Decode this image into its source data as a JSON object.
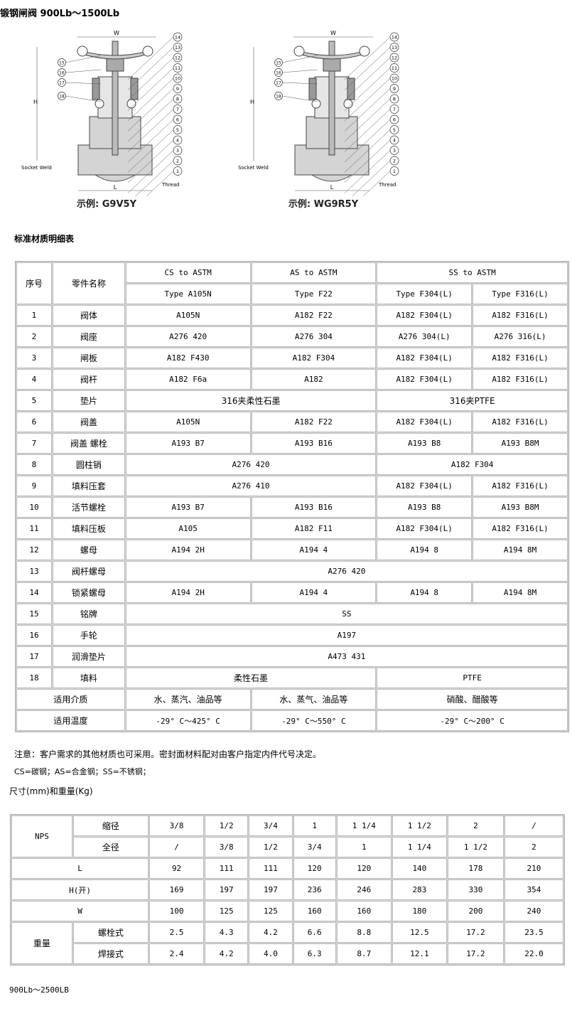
{
  "title": "锻钢闸阀 900Lb～1500Lb",
  "figures": [
    {
      "caption": "示例: G9V5Y",
      "labels": {
        "w": "W",
        "h": "H",
        "l": "L",
        "socket": "Socket Weld",
        "thread": "Thread"
      },
      "callouts": [
        "14",
        "13",
        "12",
        "11",
        "10",
        "9",
        "8",
        "7",
        "6",
        "5",
        "4",
        "3",
        "2",
        "1"
      ],
      "left_callouts": [
        "15",
        "16",
        "17",
        "18"
      ]
    },
    {
      "caption": "示例: WG9R5Y",
      "labels": {
        "w": "W",
        "h": "H",
        "l": "L",
        "socket": "Socket Weld",
        "thread": "Thread"
      },
      "callouts": [
        "14",
        "13",
        "12",
        "11",
        "10",
        "9",
        "8",
        "7",
        "6",
        "5",
        "4",
        "3",
        "2",
        "1"
      ],
      "left_callouts": [
        "15",
        "16",
        "17",
        "18"
      ]
    }
  ],
  "materials_title": "标准材质明细表",
  "materials_table": {
    "rows": [
      [
        {
          "t": "序号",
          "rs": 2,
          "cn": 1
        },
        {
          "t": "零件名称",
          "rs": 2,
          "cn": 1
        },
        {
          "t": "CS to ASTM"
        },
        {
          "t": "AS to ASTM"
        },
        {
          "t": "SS to ASTM",
          "cs": 2
        }
      ],
      [
        {
          "t": "Type A105N"
        },
        {
          "t": "Type F22"
        },
        {
          "t": "Type F304(L)"
        },
        {
          "t": "Type F316(L)"
        }
      ],
      [
        {
          "t": "1"
        },
        {
          "t": "阀体",
          "cn": 1
        },
        {
          "t": "A105N"
        },
        {
          "t": "A182 F22"
        },
        {
          "t": "A182 F304(L)"
        },
        {
          "t": "A182 F316(L)"
        }
      ],
      [
        {
          "t": "2"
        },
        {
          "t": "阀座",
          "cn": 1
        },
        {
          "t": "A276 420"
        },
        {
          "t": "A276 304"
        },
        {
          "t": "A276 304(L)"
        },
        {
          "t": "A276 316(L)"
        }
      ],
      [
        {
          "t": "3"
        },
        {
          "t": "闸板",
          "cn": 1
        },
        {
          "t": "A182 F430"
        },
        {
          "t": "A182 F304"
        },
        {
          "t": "A182 F304(L)"
        },
        {
          "t": "A182 F316(L)"
        }
      ],
      [
        {
          "t": "4"
        },
        {
          "t": "阀杆",
          "cn": 1
        },
        {
          "t": "A182 F6a"
        },
        {
          "t": "A182"
        },
        {
          "t": "A182 F304(L)"
        },
        {
          "t": "A182 F316(L)"
        }
      ],
      [
        {
          "t": "5"
        },
        {
          "t": "垫片",
          "cn": 1
        },
        {
          "t": "316夹柔性石墨",
          "cs": 2,
          "cn": 1
        },
        {
          "t": "316夹PTFE",
          "cs": 2,
          "cn": 1
        }
      ],
      [
        {
          "t": "6"
        },
        {
          "t": "阀盖",
          "cn": 1
        },
        {
          "t": "A105N"
        },
        {
          "t": "A182 F22"
        },
        {
          "t": "A182 F304(L)"
        },
        {
          "t": "A182 F316(L)"
        }
      ],
      [
        {
          "t": "7"
        },
        {
          "t": "阀盖 螺栓",
          "cn": 1
        },
        {
          "t": "A193 B7"
        },
        {
          "t": "A193 B16"
        },
        {
          "t": "A193 B8"
        },
        {
          "t": "A193 B8M"
        }
      ],
      [
        {
          "t": "8"
        },
        {
          "t": "圆柱销",
          "cn": 1
        },
        {
          "t": "A276 420",
          "cs": 2
        },
        {
          "t": "A182 F304",
          "cs": 2
        }
      ],
      [
        {
          "t": "9"
        },
        {
          "t": "填料压套",
          "cn": 1
        },
        {
          "t": "A276 410",
          "cs": 2
        },
        {
          "t": "A182 F304(L)"
        },
        {
          "t": "A182 F316(L)"
        }
      ],
      [
        {
          "t": "10"
        },
        {
          "t": "活节螺栓",
          "cn": 1
        },
        {
          "t": "A193 B7"
        },
        {
          "t": "A193 B16"
        },
        {
          "t": "A193 B8"
        },
        {
          "t": "A193 B8M"
        }
      ],
      [
        {
          "t": "11"
        },
        {
          "t": "填料压板",
          "cn": 1
        },
        {
          "t": "A105"
        },
        {
          "t": "A182 F11"
        },
        {
          "t": "A182 F304(L)"
        },
        {
          "t": "A182 F316(L)"
        }
      ],
      [
        {
          "t": "12"
        },
        {
          "t": "螺母",
          "cn": 1
        },
        {
          "t": "A194 2H"
        },
        {
          "t": "A194 4"
        },
        {
          "t": "A194 8"
        },
        {
          "t": "A194 8M"
        }
      ],
      [
        {
          "t": "13"
        },
        {
          "t": "阀杆螺母",
          "cn": 1
        },
        {
          "t": "A276 420",
          "cs": 4
        }
      ],
      [
        {
          "t": "14"
        },
        {
          "t": "锁紧螺母",
          "cn": 1
        },
        {
          "t": "A194 2H"
        },
        {
          "t": "A194 4"
        },
        {
          "t": "A194 8"
        },
        {
          "t": "A194 8M"
        }
      ],
      [
        {
          "t": "15"
        },
        {
          "t": "铭牌",
          "cn": 1
        },
        {
          "t": "SS",
          "cs": 4
        }
      ],
      [
        {
          "t": "16"
        },
        {
          "t": "手轮",
          "cn": 1
        },
        {
          "t": "A197",
          "cs": 4
        }
      ],
      [
        {
          "t": "17"
        },
        {
          "t": "润滑垫片",
          "cn": 1
        },
        {
          "t": "A473 431",
          "cs": 4
        }
      ],
      [
        {
          "t": "18"
        },
        {
          "t": "填料",
          "cn": 1
        },
        {
          "t": "柔性石墨",
          "cs": 2,
          "cn": 1
        },
        {
          "t": "PTFE",
          "cs": 2
        }
      ],
      [
        {
          "t": "适用介质",
          "cs": 2,
          "cn": 1
        },
        {
          "t": "水、蒸汽、油品等",
          "cn": 1
        },
        {
          "t": "水、蒸气、油品等",
          "cn": 1
        },
        {
          "t": "硝酸、醋酸等",
          "cs": 2,
          "cn": 1
        }
      ],
      [
        {
          "t": "适用温度",
          "cs": 2,
          "cn": 1
        },
        {
          "t": "-29° C～425° C"
        },
        {
          "t": "-29° C～550° C"
        },
        {
          "t": "-29° C～200° C",
          "cs": 2
        }
      ]
    ]
  },
  "notes": [
    "注意：客户需求的其他材质也可采用。密封面材料配对由客户指定内件代号决定。",
    "CS=碳钢；AS=合金钢；SS=不锈钢；"
  ],
  "dims_title": "尺寸(mm)和重量(Kg)",
  "dims_table": {
    "rows": [
      [
        {
          "t": "NPS",
          "rs": 2
        },
        {
          "t": "缩径",
          "cn": 1
        },
        {
          "t": "3/8",
          "f": 1
        },
        {
          "t": "1/2",
          "f": 1
        },
        {
          "t": "3/4",
          "f": 1
        },
        {
          "t": "1"
        },
        {
          "t": "1 1/4",
          "f": 1
        },
        {
          "t": "1 1/2",
          "f": 1
        },
        {
          "t": "2"
        },
        {
          "t": "/"
        }
      ],
      [
        {
          "t": "全径",
          "cn": 1
        },
        {
          "t": "/"
        },
        {
          "t": "3/8",
          "f": 1
        },
        {
          "t": "1/2",
          "f": 1
        },
        {
          "t": "3/4",
          "f": 1
        },
        {
          "t": "1"
        },
        {
          "t": "1 1/4",
          "f": 1
        },
        {
          "t": "1 1/2",
          "f": 1
        },
        {
          "t": "2"
        }
      ],
      [
        {
          "t": "L",
          "cs": 2
        },
        {
          "t": "92"
        },
        {
          "t": "111"
        },
        {
          "t": "111"
        },
        {
          "t": "120"
        },
        {
          "t": "120"
        },
        {
          "t": "140"
        },
        {
          "t": "178"
        },
        {
          "t": "210"
        }
      ],
      [
        {
          "t": "H(开)",
          "cs": 2
        },
        {
          "t": "169"
        },
        {
          "t": "197"
        },
        {
          "t": "197"
        },
        {
          "t": "236"
        },
        {
          "t": "246"
        },
        {
          "t": "283"
        },
        {
          "t": "330"
        },
        {
          "t": "354"
        }
      ],
      [
        {
          "t": "W",
          "cs": 2
        },
        {
          "t": "100"
        },
        {
          "t": "125"
        },
        {
          "t": "125"
        },
        {
          "t": "160"
        },
        {
          "t": "160"
        },
        {
          "t": "180"
        },
        {
          "t": "200"
        },
        {
          "t": "240"
        }
      ],
      [
        {
          "t": "重量",
          "rs": 2,
          "cn": 1
        },
        {
          "t": "螺栓式",
          "cn": 1
        },
        {
          "t": "2.5"
        },
        {
          "t": "4.3"
        },
        {
          "t": "4.2"
        },
        {
          "t": "6.6"
        },
        {
          "t": "8.8"
        },
        {
          "t": "12.5"
        },
        {
          "t": "17.2"
        },
        {
          "t": "23.5"
        }
      ],
      [
        {
          "t": "焊接式",
          "cn": 1
        },
        {
          "t": "2.4"
        },
        {
          "t": "4.2"
        },
        {
          "t": "4.0"
        },
        {
          "t": "6.3"
        },
        {
          "t": "8.7"
        },
        {
          "t": "12.1"
        },
        {
          "t": "17.2"
        },
        {
          "t": "22.0"
        }
      ]
    ]
  },
  "footer": "900Lb～2500LB"
}
